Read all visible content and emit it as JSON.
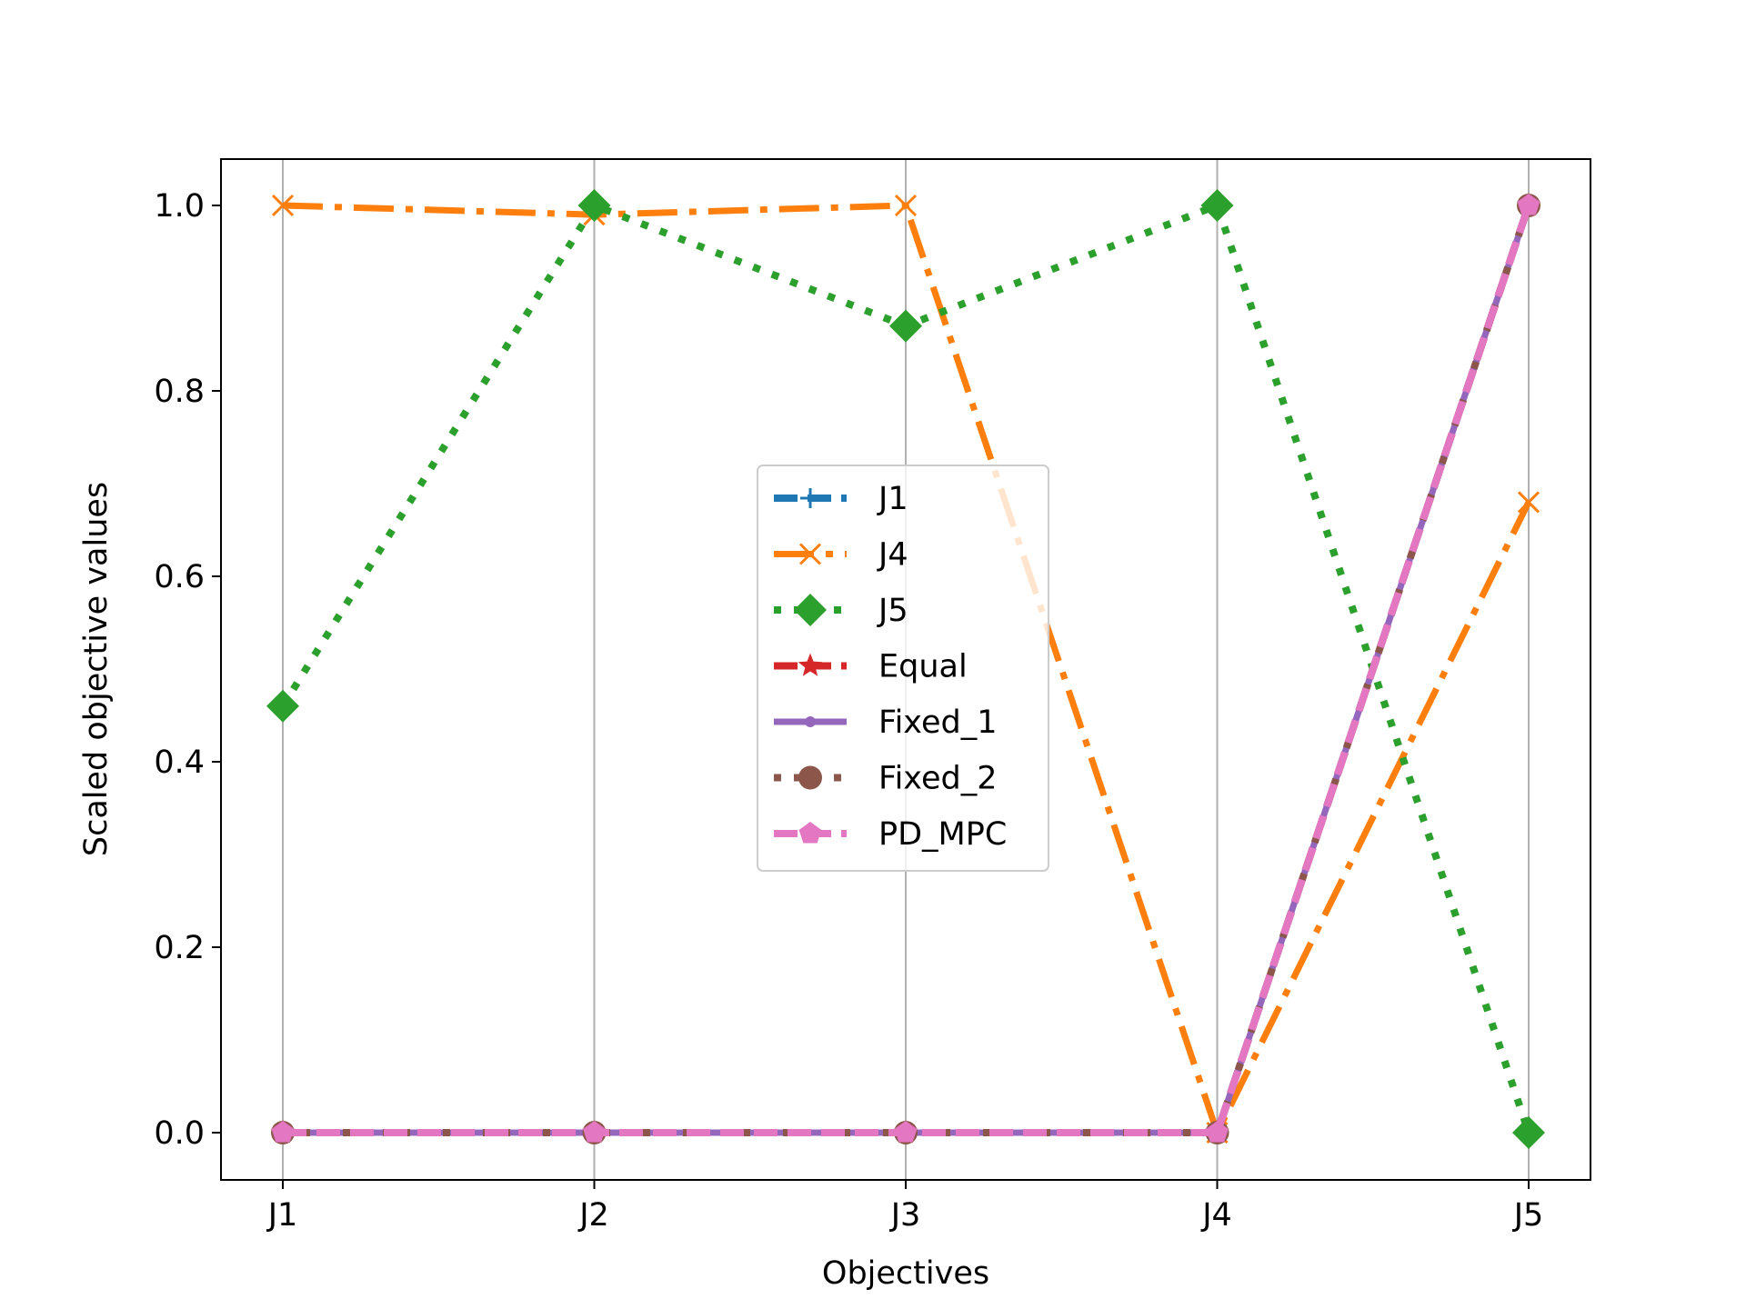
{
  "chart_data": {
    "type": "line",
    "title": "",
    "xlabel": "Objectives",
    "ylabel": "Scaled objective values",
    "categories": [
      "J1",
      "J2",
      "J3",
      "J4",
      "J5"
    ],
    "ylim": [
      -0.05,
      1.05
    ],
    "yticks": [
      "0.0",
      "0.2",
      "0.4",
      "0.6",
      "0.8",
      "1.0"
    ],
    "ytick_values": [
      0.0,
      0.2,
      0.4,
      0.6,
      0.8,
      1.0
    ],
    "grid": "vertical",
    "legend_position": "center",
    "series": [
      {
        "name": "J1",
        "values": [
          0.0,
          0.0,
          0.0,
          0.0,
          1.0
        ],
        "color": "#1f77b4",
        "linestyle": "dashed",
        "marker": "plus"
      },
      {
        "name": "J4",
        "values": [
          1.0,
          0.99,
          1.0,
          0.0,
          0.68
        ],
        "color": "#ff7f0e",
        "linestyle": "dashdot",
        "marker": "x"
      },
      {
        "name": "J5",
        "values": [
          0.46,
          1.0,
          0.87,
          1.0,
          0.0
        ],
        "color": "#2ca02c",
        "linestyle": "dotted",
        "marker": "diamond"
      },
      {
        "name": "Equal",
        "values": [
          0.0,
          0.0,
          0.0,
          0.0,
          1.0
        ],
        "color": "#d62728",
        "linestyle": "dashed",
        "marker": "star"
      },
      {
        "name": "Fixed_1",
        "values": [
          0.0,
          0.0,
          0.0,
          0.0,
          1.0
        ],
        "color": "#9467bd",
        "linestyle": "solid",
        "marker": "point"
      },
      {
        "name": "Fixed_2",
        "values": [
          0.0,
          0.0,
          0.0,
          0.0,
          1.0
        ],
        "color": "#8c564b",
        "linestyle": "dotted",
        "marker": "circle"
      },
      {
        "name": "PD_MPC",
        "values": [
          0.0,
          0.0,
          0.0,
          0.0,
          1.0
        ],
        "color": "#e377c2",
        "linestyle": "dashed",
        "marker": "pentagon"
      }
    ]
  }
}
